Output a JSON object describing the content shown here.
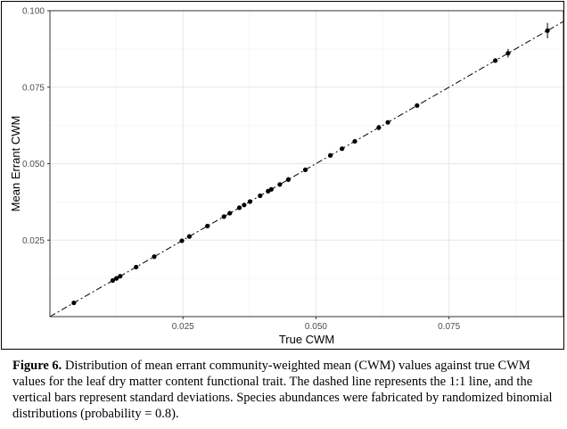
{
  "chart_data": {
    "type": "scatter",
    "title": "",
    "xlabel": "True CWM",
    "ylabel": "Mean Errant CWM",
    "xlim": [
      0.0,
      0.0965
    ],
    "ylim": [
      0.0,
      0.1
    ],
    "x_ticks": [
      {
        "value": 0.025,
        "label": "0.025"
      },
      {
        "value": 0.05,
        "label": "0.050"
      },
      {
        "value": 0.075,
        "label": "0.075"
      }
    ],
    "y_ticks": [
      {
        "value": 0.025,
        "label": "0.025"
      },
      {
        "value": 0.05,
        "label": "0.050"
      },
      {
        "value": 0.075,
        "label": "0.075"
      },
      {
        "value": 0.1,
        "label": "0.100"
      }
    ],
    "grid": true,
    "reference_line": {
      "type": "1:1",
      "style": "dash-dot",
      "from": 0.0,
      "to": 0.0965
    },
    "points": [
      {
        "x": 0.0045,
        "y": 0.0045,
        "sd": 0.0001
      },
      {
        "x": 0.0118,
        "y": 0.0118,
        "sd": 0.0001
      },
      {
        "x": 0.0125,
        "y": 0.0125,
        "sd": 0.0001
      },
      {
        "x": 0.0132,
        "y": 0.0132,
        "sd": 0.0001
      },
      {
        "x": 0.0162,
        "y": 0.0162,
        "sd": 0.0002
      },
      {
        "x": 0.0196,
        "y": 0.0196,
        "sd": 0.0002
      },
      {
        "x": 0.0248,
        "y": 0.0248,
        "sd": 0.0002
      },
      {
        "x": 0.0262,
        "y": 0.0262,
        "sd": 0.0002
      },
      {
        "x": 0.0296,
        "y": 0.0296,
        "sd": 0.0002
      },
      {
        "x": 0.0327,
        "y": 0.0327,
        "sd": 0.0002
      },
      {
        "x": 0.0338,
        "y": 0.0338,
        "sd": 0.0002
      },
      {
        "x": 0.0356,
        "y": 0.0356,
        "sd": 0.0003
      },
      {
        "x": 0.0365,
        "y": 0.0365,
        "sd": 0.0003
      },
      {
        "x": 0.0376,
        "y": 0.0376,
        "sd": 0.0003
      },
      {
        "x": 0.0395,
        "y": 0.0395,
        "sd": 0.0003
      },
      {
        "x": 0.041,
        "y": 0.041,
        "sd": 0.0003
      },
      {
        "x": 0.0416,
        "y": 0.0416,
        "sd": 0.0003
      },
      {
        "x": 0.0432,
        "y": 0.0432,
        "sd": 0.0003
      },
      {
        "x": 0.0448,
        "y": 0.0448,
        "sd": 0.0008
      },
      {
        "x": 0.048,
        "y": 0.048,
        "sd": 0.0003
      },
      {
        "x": 0.0527,
        "y": 0.0527,
        "sd": 0.0004
      },
      {
        "x": 0.0549,
        "y": 0.0549,
        "sd": 0.0004
      },
      {
        "x": 0.0573,
        "y": 0.0573,
        "sd": 0.0004
      },
      {
        "x": 0.0618,
        "y": 0.0618,
        "sd": 0.0009
      },
      {
        "x": 0.0635,
        "y": 0.0635,
        "sd": 0.0004
      },
      {
        "x": 0.069,
        "y": 0.069,
        "sd": 0.0005
      },
      {
        "x": 0.0837,
        "y": 0.0837,
        "sd": 0.0005
      },
      {
        "x": 0.0861,
        "y": 0.0861,
        "sd": 0.0014
      },
      {
        "x": 0.0935,
        "y": 0.0935,
        "sd": 0.0025
      }
    ]
  },
  "caption": {
    "label": "Figure 6.",
    "text": " Distribution of mean errant community-weighted mean (CWM) values against true CWM values for the leaf dry matter content functional trait. The dashed line represents the 1:1 line, and the vertical bars represent standard deviations. Species abundances were fabricated by randomized binomial distributions (probability = 0.8)."
  }
}
